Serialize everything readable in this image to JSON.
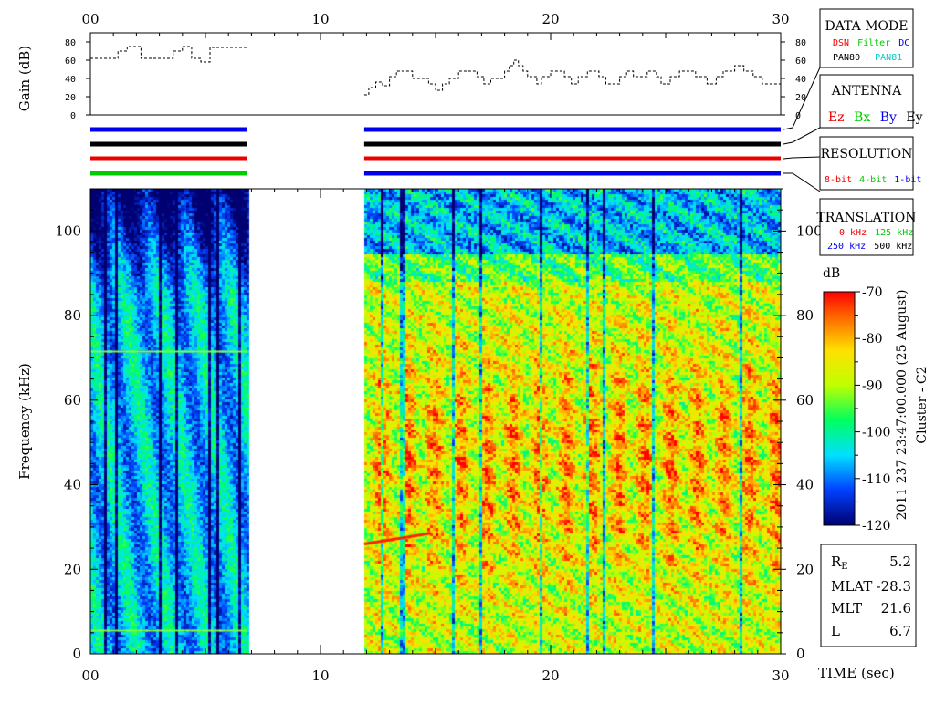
{
  "time_axis": {
    "label": "TIME (sec)",
    "ticks": [
      "00",
      "10",
      "20",
      "30"
    ]
  },
  "gain_panel": {
    "ylabel": "Gain (dB)",
    "ticks": [
      "0",
      "20",
      "40",
      "60",
      "80"
    ]
  },
  "freq_axis": {
    "ylabel": "Frequency (kHz)",
    "ticks": [
      "0",
      "20",
      "40",
      "60",
      "80",
      "100"
    ]
  },
  "legend_boxes": {
    "data_mode": {
      "title": "DATA MODE",
      "items": [
        {
          "text": "DSN",
          "color": "#ee0000"
        },
        {
          "text": "Filter",
          "color": "#00cc00"
        },
        {
          "text": "DC",
          "color": "#0000ee"
        },
        {
          "text": "PAN80",
          "color": "#000000"
        },
        {
          "text": "PAN81",
          "color": "#00cccc"
        }
      ]
    },
    "antenna": {
      "title": "ANTENNA",
      "items": [
        {
          "text": "Ez",
          "color": "#ee0000"
        },
        {
          "text": "Bx",
          "color": "#00cc00"
        },
        {
          "text": "By",
          "color": "#0000ee"
        },
        {
          "text": "Ey",
          "color": "#000000"
        }
      ]
    },
    "resolution": {
      "title": "RESOLUTION",
      "items": [
        {
          "text": "8-bit",
          "color": "#ee0000"
        },
        {
          "text": "4-bit",
          "color": "#00cc00"
        },
        {
          "text": "1-bit",
          "color": "#0000ee"
        }
      ]
    },
    "translation": {
      "title": "TRANSLATION",
      "items": [
        {
          "text": "0 kHz",
          "color": "#ee0000"
        },
        {
          "text": "125 kHz",
          "color": "#00cc00"
        },
        {
          "text": "250 kHz",
          "color": "#0000ee"
        },
        {
          "text": "500 kHz",
          "color": "#000000"
        }
      ]
    }
  },
  "colorbar": {
    "unit": "dB",
    "ticks": [
      "-70",
      "-80",
      "-90",
      "-100",
      "-110",
      "-120"
    ],
    "side_text": "2011 237 23:47:00.000 (25 August)",
    "spacecraft": "Cluster - C2"
  },
  "orbit_info": [
    {
      "label": "R",
      "sub": "E",
      "value": "5.2"
    },
    {
      "label": "MLAT",
      "sub": "",
      "value": "-28.3"
    },
    {
      "label": "MLT",
      "sub": "",
      "value": "21.6"
    },
    {
      "label": "L",
      "sub": "",
      "value": "6.7"
    }
  ],
  "chart_data": [
    {
      "type": "line",
      "name": "gain",
      "xlim": [
        0,
        30
      ],
      "ylim": [
        0,
        80
      ],
      "segments": [
        {
          "x": [
            0,
            1.2,
            1.2,
            1.6,
            1.6,
            2.2,
            2.2,
            3.6,
            3.6,
            4.0,
            4.0,
            4.4,
            4.4,
            4.8,
            4.8,
            5.2,
            5.2,
            6.8
          ],
          "y": [
            62,
            62,
            70,
            70,
            75,
            75,
            62,
            62,
            70,
            70,
            75,
            75,
            62,
            62,
            58,
            58,
            74,
            74
          ]
        },
        {
          "x": [
            11.9,
            12.1,
            12.1,
            12.4,
            12.4,
            12.7,
            12.7,
            13.0,
            13.0,
            13.3,
            13.3,
            14.0,
            14.0,
            14.7,
            14.7,
            15.0,
            15.0,
            15.3,
            15.3,
            15.6,
            15.6,
            16.0,
            16.0,
            16.8,
            16.8,
            17.1,
            17.1,
            17.4,
            17.4,
            18.0,
            18.0,
            18.2,
            18.2,
            18.4,
            18.4,
            18.6,
            18.6,
            18.8,
            18.8,
            19.0,
            19.0,
            19.4,
            19.4,
            19.6,
            19.6,
            20.0,
            20.0,
            20.6,
            20.6,
            20.9,
            20.9,
            21.2,
            21.2,
            21.6,
            21.6,
            22.1,
            22.1,
            22.4,
            22.4,
            23.0,
            23.0,
            23.3,
            23.3,
            23.6,
            23.6,
            24.2,
            24.2,
            24.6,
            24.6,
            24.8,
            24.8,
            25.2,
            25.2,
            25.6,
            25.6,
            26.3,
            26.3,
            26.8,
            26.8,
            27.2,
            27.2,
            27.5,
            27.5,
            28.0,
            28.0,
            28.4,
            28.4,
            28.8,
            28.8,
            29.2,
            29.2,
            30.0
          ],
          "y": [
            22,
            22,
            30,
            30,
            36,
            36,
            32,
            32,
            42,
            42,
            48,
            48,
            40,
            40,
            34,
            34,
            27,
            27,
            34,
            34,
            40,
            40,
            48,
            48,
            42,
            42,
            34,
            34,
            40,
            40,
            48,
            48,
            54,
            54,
            60,
            60,
            54,
            54,
            48,
            48,
            42,
            42,
            34,
            34,
            42,
            42,
            48,
            48,
            42,
            42,
            34,
            34,
            42,
            42,
            48,
            48,
            42,
            42,
            34,
            34,
            42,
            42,
            48,
            48,
            42,
            42,
            48,
            48,
            42,
            42,
            34,
            34,
            42,
            42,
            48,
            48,
            42,
            42,
            34,
            34,
            42,
            42,
            48,
            48,
            54,
            54,
            48,
            48,
            42,
            42,
            34,
            34
          ]
        }
      ]
    },
    {
      "type": "line",
      "name": "mode_bars",
      "xlim": [
        0,
        30
      ],
      "rows": [
        {
          "row": "data_mode",
          "color": "#0000ee",
          "intervals": [
            [
              0,
              6.8
            ],
            [
              11.9,
              30
            ]
          ]
        },
        {
          "row": "antenna",
          "color": "#000000",
          "intervals": [
            [
              0,
              6.8
            ],
            [
              11.9,
              30
            ]
          ]
        },
        {
          "row": "resolution",
          "color": "#ee0000",
          "intervals": [
            [
              0,
              6.8
            ],
            [
              11.9,
              30
            ]
          ]
        },
        {
          "row": "translation",
          "color": "#00cc00",
          "intervals": [
            [
              0,
              6.8
            ]
          ]
        },
        {
          "row": "translation",
          "color": "#0000ee",
          "intervals": [
            [
              11.9,
              30
            ]
          ]
        }
      ]
    },
    {
      "type": "heatmap",
      "name": "spectrogram",
      "xlim": [
        0,
        30
      ],
      "ylim": [
        0,
        110
      ],
      "zlim": [
        -120,
        -70
      ],
      "data_intervals": [
        [
          0,
          6.8
        ],
        [
          11.9,
          30
        ]
      ],
      "lines": [
        {
          "freq": 71.5,
          "interval": [
            0,
            6.8
          ]
        },
        {
          "freq": 5.5,
          "interval": [
            0,
            6.8
          ]
        },
        {
          "freq": 26,
          "interval": [
            11.9,
            14.8
          ],
          "type": "rising"
        }
      ]
    }
  ]
}
